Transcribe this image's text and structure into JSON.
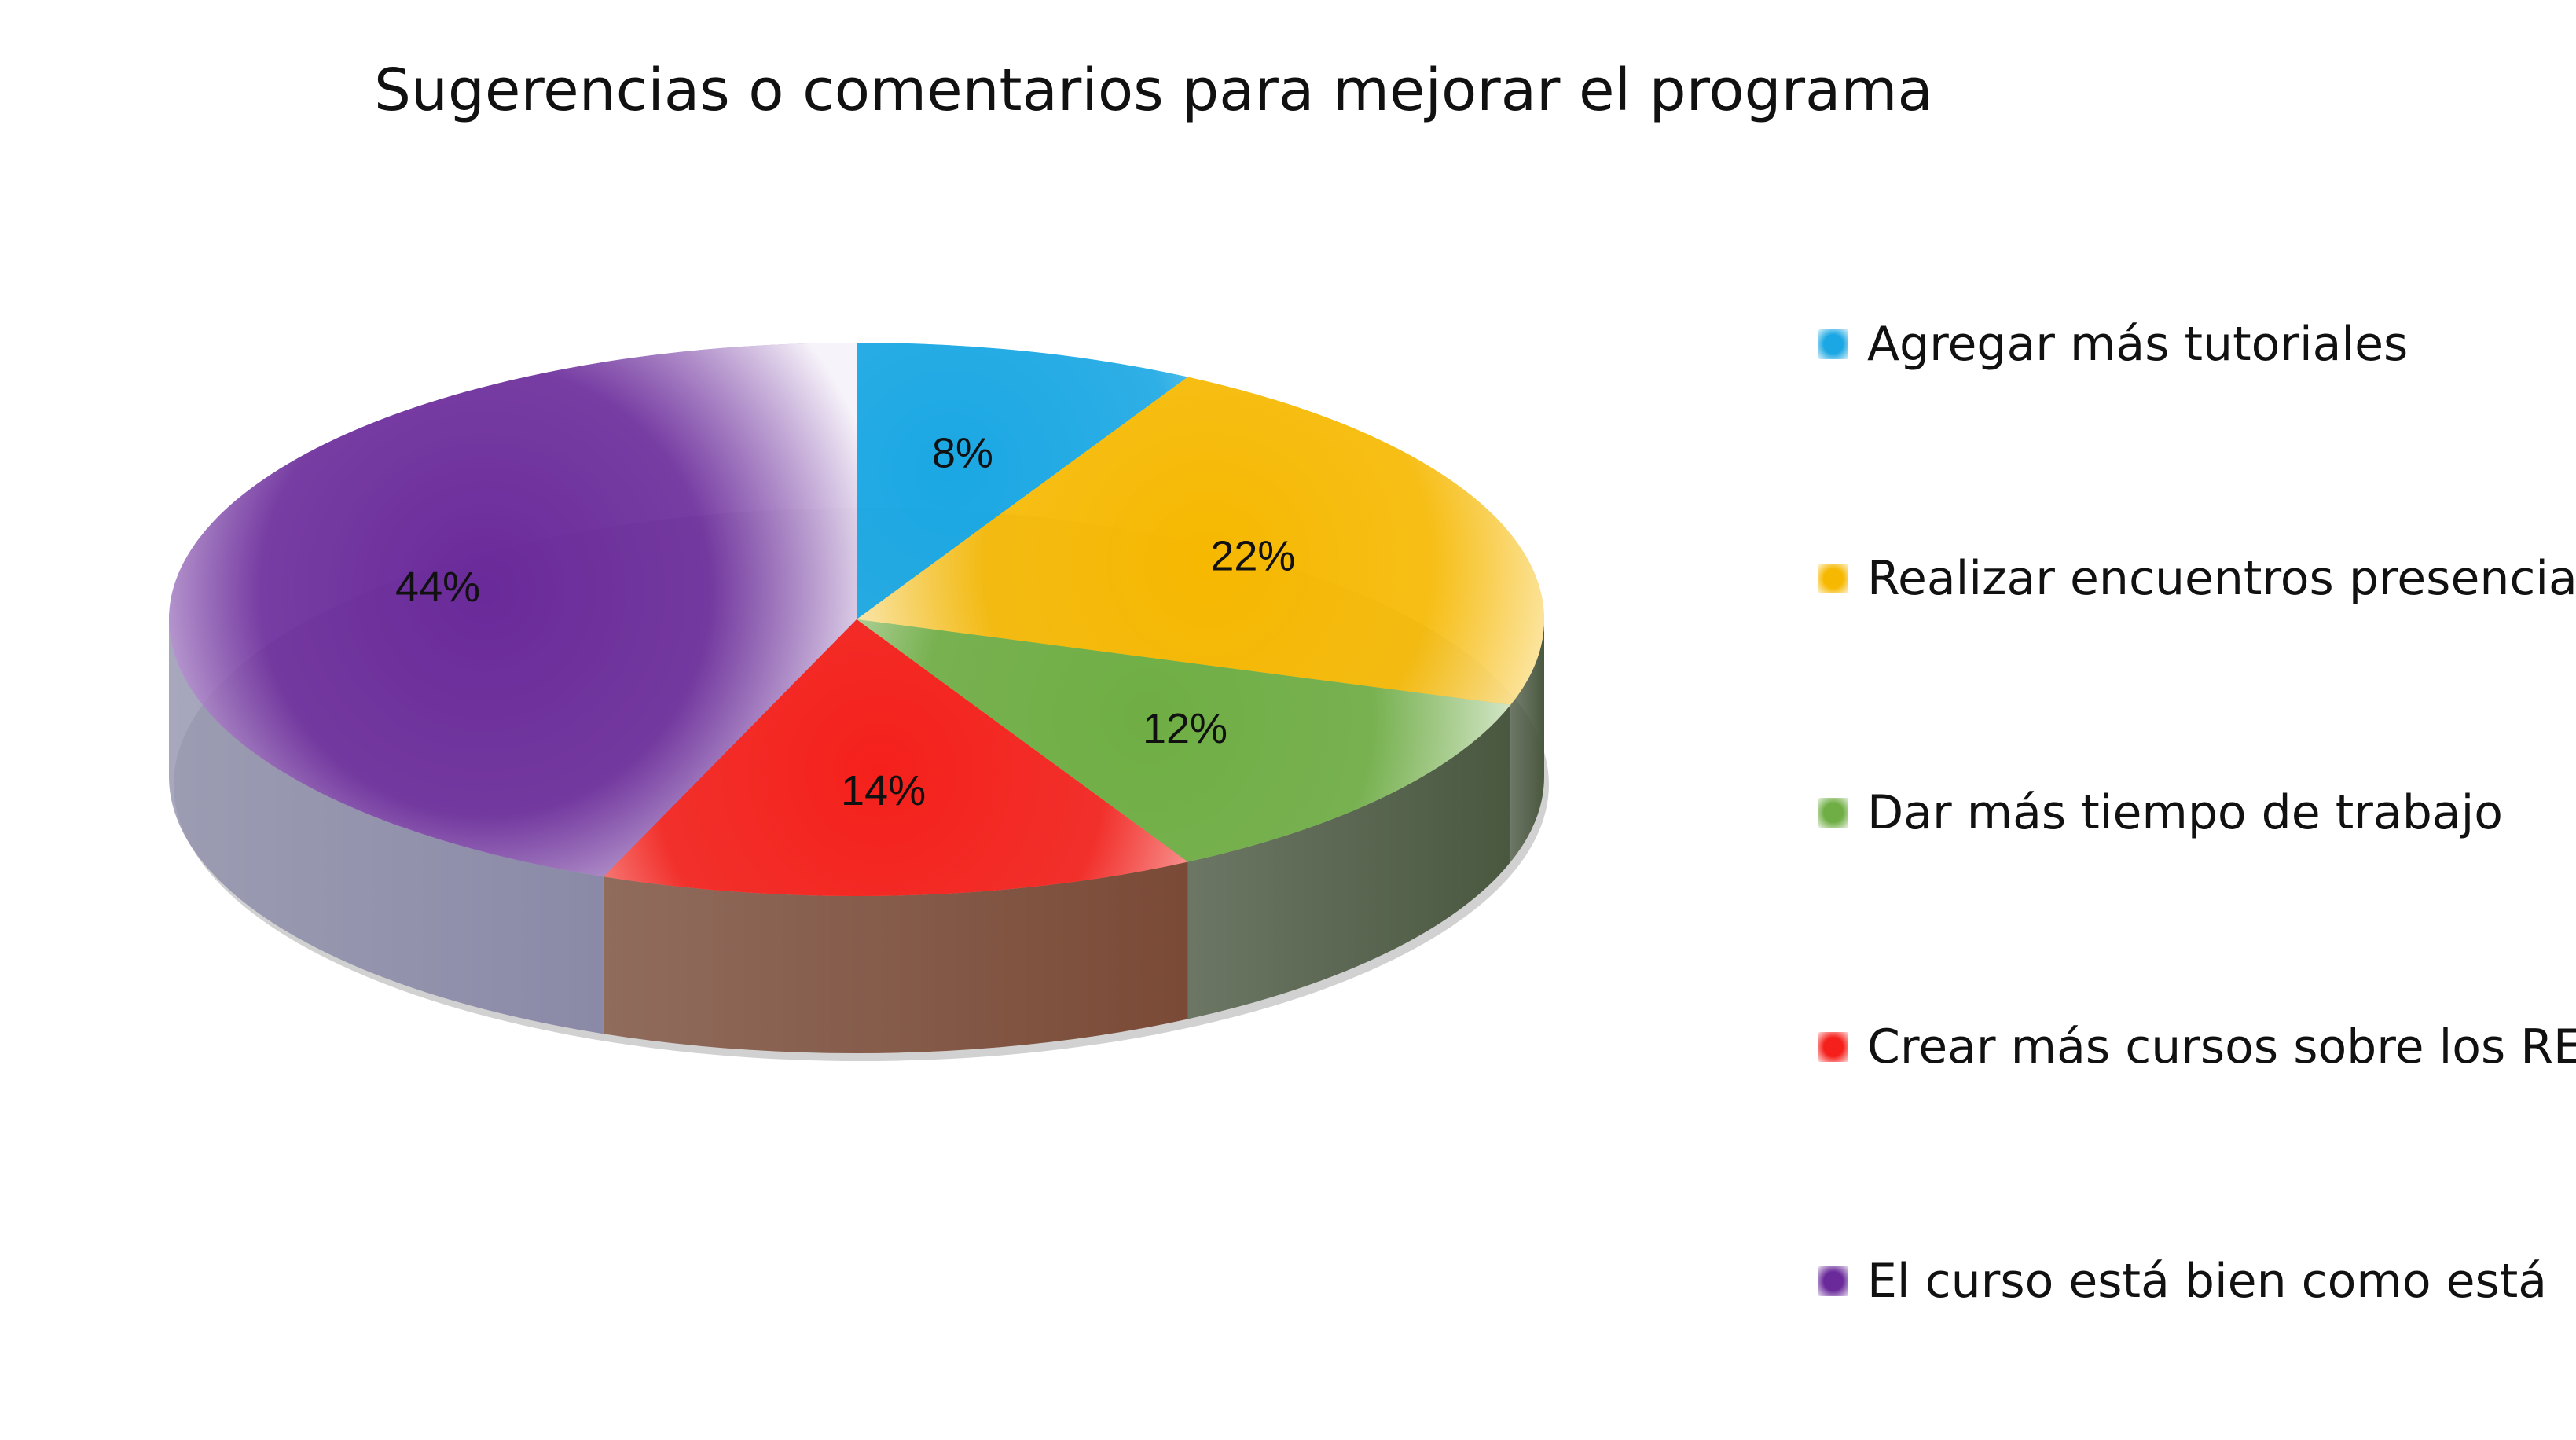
{
  "chart_data": {
    "type": "pie",
    "title": "Sugerencias o comentarios para mejorar el programa",
    "categories": [
      "Agregar más tutoriales",
      "Realizar encuentros presenciales",
      "Dar más tiempo de trabajo",
      "Crear más cursos sobre los RED",
      "El curso está bien como está"
    ],
    "values": [
      8,
      22,
      12,
      14,
      44
    ],
    "labels": [
      "8%",
      "22%",
      "12%",
      "14%",
      "44%"
    ],
    "colors": [
      "#1aa7e3",
      "#f6b800",
      "#6fae44",
      "#f5201b",
      "#6a2a9a"
    ],
    "side_colors": [
      "#5a6c7a",
      "#4a5840",
      "#4a5840",
      "#7a4a36",
      "#8a8aa8"
    ],
    "legend_position": "right"
  }
}
